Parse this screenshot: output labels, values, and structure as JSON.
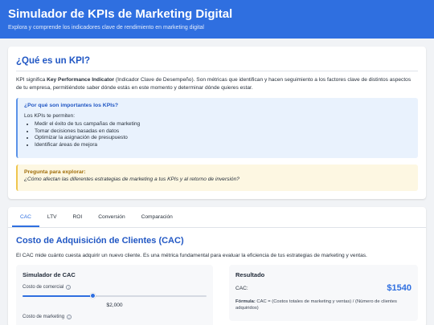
{
  "header": {
    "title": "Simulador de KPIs de Marketing Digital",
    "subtitle": "Explora y comprende los indicadores clave de rendimiento en marketing digital"
  },
  "kpi_intro": {
    "title": "¿Qué es un KPI?",
    "text_prefix": "KPI significa ",
    "text_bold": "Key Performance Indicator",
    "text_suffix": " (Indicador Clave de Desempeño). Son métricas que identifican y hacen seguimiento a los factores clave de distintos aspectos de tu empresa, permitiéndote saber dónde estás en este momento y determinar dónde quieres estar.",
    "importance": {
      "title": "¿Por qué son importantes los KPIs?",
      "lead": "Los KPIs te permiten:",
      "items": [
        "Medir el éxito de tus campañas de marketing",
        "Tomar decisiones basadas en datos",
        "Optimizar la asignación de presupuesto",
        "Identificar áreas de mejora"
      ]
    },
    "question": {
      "title": "Pregunta para explorar:",
      "text": "¿Cómo afectan las diferentes estrategias de marketing a tus KPIs y al retorno de inversión?"
    }
  },
  "tabs": [
    "CAC",
    "LTV",
    "ROI",
    "Conversión",
    "Comparación"
  ],
  "active_tab": "CAC",
  "cac": {
    "title": "Costo de Adquisición de Clientes (CAC)",
    "description": "El CAC mide cuánto cuesta adquirir un nuevo cliente. Es una métrica fundamental para evaluar la eficiencia de tus estrategias de marketing y ventas.",
    "simulator": {
      "title": "Simulador de CAC",
      "fields": [
        {
          "label": "Costo de comercial",
          "value_text": "$2,000",
          "level": 0.38
        },
        {
          "label": "Costo de marketing"
        }
      ]
    },
    "result": {
      "title": "Resultado",
      "label": "CAC:",
      "value": "$1540",
      "formula_label": "Fórmula:",
      "formula_text": " CAC = (Costos totales de marketing y ventas) / (Número de clientes adquiridos)"
    }
  },
  "colors": {
    "primary": "#2f6fe0",
    "heading": "#2157c4",
    "info_bg": "#e9f2fd",
    "warning_bg": "#fdf7e2",
    "warning_text": "#a06d0a"
  }
}
